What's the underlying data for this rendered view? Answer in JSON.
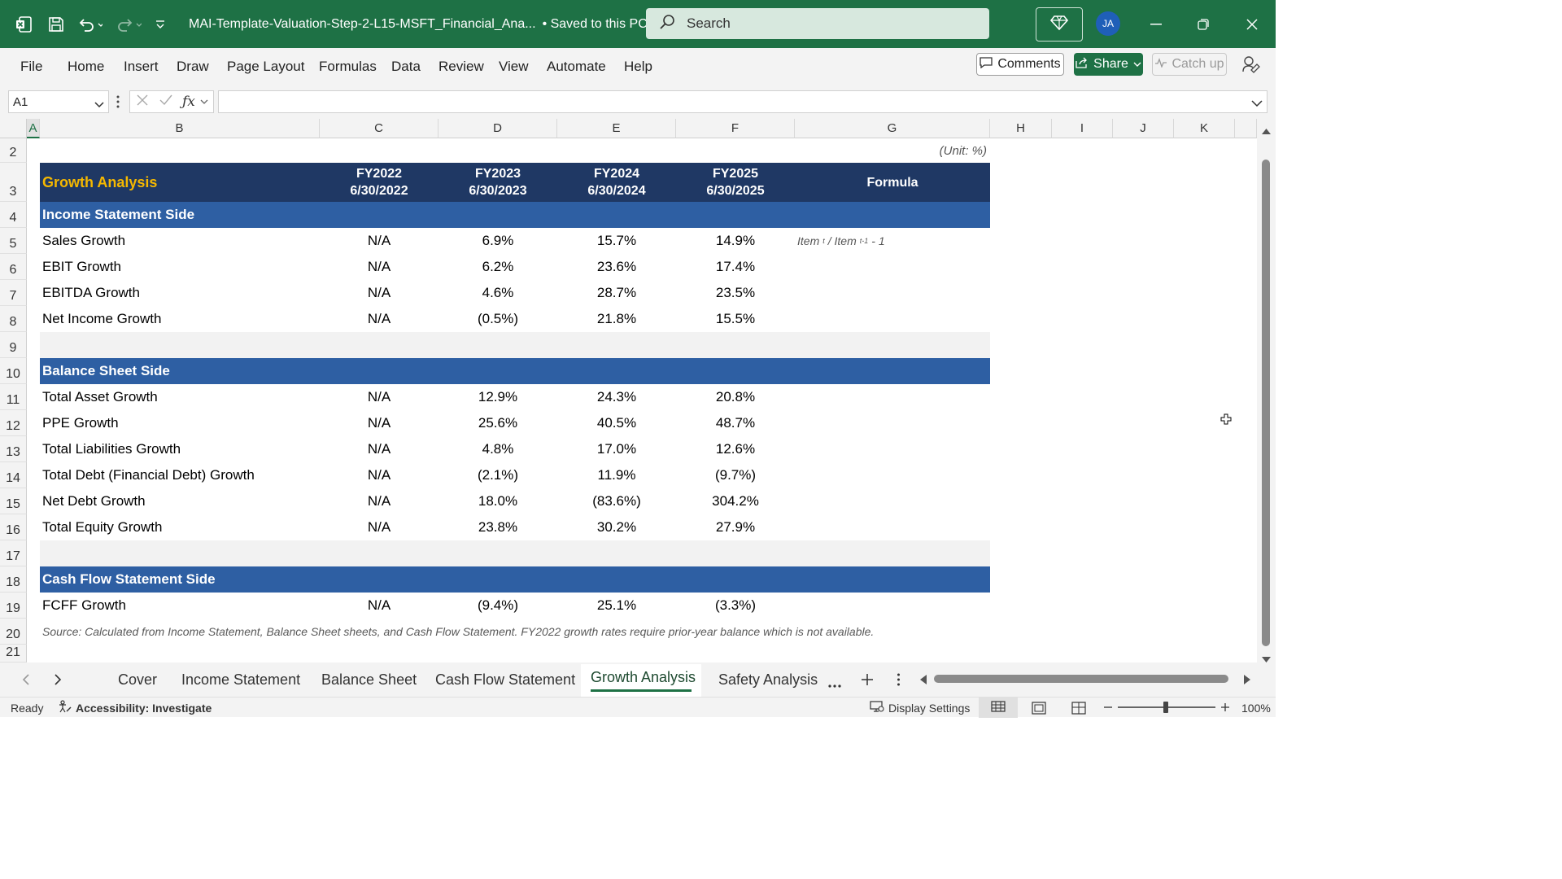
{
  "titlebar": {
    "file_title": "MAI-Template-Valuation-Step-2-L15-MSFT_Financial_Ana...",
    "save_status": "• Saved to this PC",
    "search_placeholder": "Search",
    "avatar_initials": "JA"
  },
  "ribbon": {
    "tabs": [
      "File",
      "Home",
      "Insert",
      "Draw",
      "Page Layout",
      "Formulas",
      "Data",
      "Review",
      "View",
      "Automate",
      "Help"
    ],
    "comments_label": "Comments",
    "share_label": "Share",
    "catchup_label": "Catch up"
  },
  "formula_bar": {
    "name_box": "A1",
    "formula": ""
  },
  "columns": [
    "A",
    "B",
    "C",
    "D",
    "E",
    "F",
    "G",
    "H",
    "I",
    "J",
    "K"
  ],
  "rows": [
    "2",
    "3",
    "4",
    "5",
    "6",
    "7",
    "8",
    "9",
    "10",
    "11",
    "12",
    "13",
    "14",
    "15",
    "16",
    "17",
    "18",
    "19",
    "20",
    "21"
  ],
  "sheet": {
    "unit_note": "(Unit: %)",
    "title": "Growth Analysis",
    "headers": [
      {
        "fy": "FY2022",
        "date": "6/30/2022"
      },
      {
        "fy": "FY2023",
        "date": "6/30/2023"
      },
      {
        "fy": "FY2024",
        "date": "6/30/2024"
      },
      {
        "fy": "FY2025",
        "date": "6/30/2025"
      }
    ],
    "formula_header": "Formula",
    "sections": {
      "income": "Income Statement Side",
      "balance": "Balance Sheet Side",
      "cashflow": "Cash Flow Statement Side"
    },
    "formula_text": {
      "a": "Item",
      "sup1": "t",
      "b": " / Item",
      "sup2": "t-1",
      "c": " - 1"
    },
    "income_rows": [
      {
        "label": "Sales Growth",
        "values": [
          "N/A",
          "6.9%",
          "15.7%",
          "14.9%"
        ]
      },
      {
        "label": "EBIT Growth",
        "values": [
          "N/A",
          "6.2%",
          "23.6%",
          "17.4%"
        ]
      },
      {
        "label": "EBITDA Growth",
        "values": [
          "N/A",
          "4.6%",
          "28.7%",
          "23.5%"
        ]
      },
      {
        "label": "Net Income Growth",
        "values": [
          "N/A",
          "(0.5%)",
          "21.8%",
          "15.5%"
        ]
      }
    ],
    "balance_rows": [
      {
        "label": "Total Asset Growth",
        "values": [
          "N/A",
          "12.9%",
          "24.3%",
          "20.8%"
        ]
      },
      {
        "label": "PPE Growth",
        "values": [
          "N/A",
          "25.6%",
          "40.5%",
          "48.7%"
        ]
      },
      {
        "label": "Total Liabilities Growth",
        "values": [
          "N/A",
          "4.8%",
          "17.0%",
          "12.6%"
        ]
      },
      {
        "label": "Total Debt (Financial Debt) Growth",
        "values": [
          "N/A",
          "(2.1%)",
          "11.9%",
          "(9.7%)"
        ]
      },
      {
        "label": "Net Debt Growth",
        "values": [
          "N/A",
          "18.0%",
          "(83.6%)",
          "304.2%"
        ]
      },
      {
        "label": "Total Equity Growth",
        "values": [
          "N/A",
          "23.8%",
          "30.2%",
          "27.9%"
        ]
      }
    ],
    "cashflow_rows": [
      {
        "label": "FCFF Growth",
        "values": [
          "N/A",
          "(9.4%)",
          "25.1%",
          "(3.3%)"
        ]
      }
    ],
    "source_note": "Source: Calculated from Income Statement, Balance Sheet sheets, and Cash Flow Statement. FY2022 growth rates require prior-year balance which is not available."
  },
  "sheet_tabs": [
    "Cover",
    "Income Statement",
    "Balance Sheet",
    "Cash Flow Statement",
    "Growth Analysis",
    "Safety Analysis"
  ],
  "active_sheet": "Growth Analysis",
  "statusbar": {
    "ready": "Ready",
    "accessibility": "Accessibility: Investigate",
    "display_settings": "Display Settings",
    "zoom": "100%"
  },
  "colors": {
    "accent": "#1e7145",
    "header_navy": "#1f3864",
    "section_blue": "#2e5fa3",
    "title_gold": "#f5b800"
  }
}
